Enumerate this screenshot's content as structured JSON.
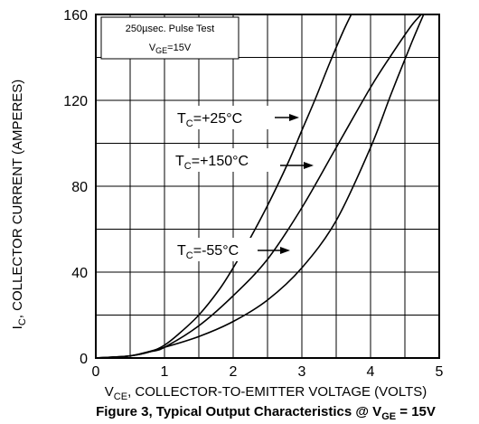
{
  "chart_data": {
    "type": "line",
    "title": "",
    "xlabel_parts": [
      "V",
      "CE",
      ", COLLECTOR-TO-EMITTER VOLTAGE (VOLTS)"
    ],
    "ylabel_parts": [
      "I",
      "C",
      ", COLLECTOR CURRENT (AMPERES)"
    ],
    "xlim": [
      0,
      5
    ],
    "ylim": [
      0,
      160
    ],
    "grid": true,
    "x_ticks": [
      0,
      1,
      2,
      3,
      4,
      5
    ],
    "y_ticks": [
      0,
      40,
      80,
      120,
      160
    ],
    "x_tick_labels": [
      "0",
      "1",
      "2",
      "3",
      "4",
      "5"
    ],
    "y_tick_labels": [
      "0",
      "40",
      "80",
      "120",
      "160"
    ],
    "caption_parts": [
      "Figure 3, Typical Output Characteristics @ V",
      "GE",
      " = 15V"
    ],
    "test_conditions": {
      "line1": "250µsec. Pulse Test",
      "line2_parts": [
        "V",
        "GE",
        "=15V"
      ]
    },
    "series": [
      {
        "name_parts": [
          "T",
          "C",
          "=+25°C"
        ],
        "points": [
          [
            0,
            0
          ],
          [
            0.5,
            1
          ],
          [
            0.8,
            3
          ],
          [
            1.0,
            6
          ],
          [
            1.2,
            11
          ],
          [
            1.5,
            20
          ],
          [
            1.8,
            32
          ],
          [
            2.0,
            42
          ],
          [
            2.2,
            53
          ],
          [
            2.5,
            71
          ],
          [
            2.8,
            91
          ],
          [
            3.0,
            106
          ],
          [
            3.2,
            121
          ],
          [
            3.4,
            137
          ],
          [
            3.6,
            152
          ],
          [
            3.75,
            162
          ]
        ]
      },
      {
        "name_parts": [
          "T",
          "C",
          "=+150°C"
        ],
        "points": [
          [
            0,
            0
          ],
          [
            0.5,
            1
          ],
          [
            0.8,
            3
          ],
          [
            1.0,
            5
          ],
          [
            1.5,
            15
          ],
          [
            2.0,
            29
          ],
          [
            2.5,
            46
          ],
          [
            3.0,
            70
          ],
          [
            3.5,
            98
          ],
          [
            4.0,
            126
          ],
          [
            4.3,
            141
          ],
          [
            4.6,
            155
          ],
          [
            4.8,
            162
          ]
        ]
      },
      {
        "name_parts": [
          "T",
          "C",
          "=-55°C"
        ],
        "points": [
          [
            0,
            0
          ],
          [
            0.5,
            1
          ],
          [
            1.0,
            5
          ],
          [
            1.5,
            10
          ],
          [
            2.0,
            17
          ],
          [
            2.5,
            27
          ],
          [
            3.0,
            42
          ],
          [
            3.5,
            64
          ],
          [
            4.0,
            98
          ],
          [
            4.3,
            123
          ],
          [
            4.6,
            147
          ],
          [
            4.8,
            162
          ]
        ]
      }
    ]
  }
}
